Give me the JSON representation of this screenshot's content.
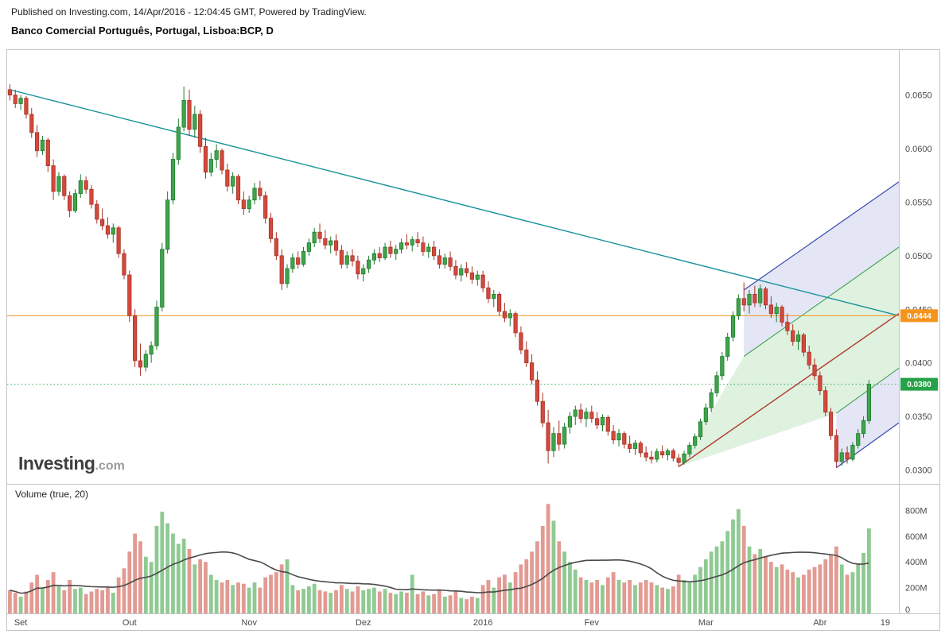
{
  "header": {
    "published": "Published on Investing.com, 14/Apr/2016 - 12:04:45 GMT, Powered by TradingView.",
    "title": "Banco Comercial Português, Portugal, Lisboa:BCP, D"
  },
  "watermark": {
    "brand": "Investing",
    "suffix": ".com"
  },
  "volume_label": "Volume (true, 20)",
  "chart_data": {
    "type": "candlestick",
    "title": "Banco Comercial Português, Portugal, Lisboa:BCP, D",
    "xlabel": "",
    "ylabel": "",
    "candle_format": [
      "open",
      "high",
      "low",
      "close",
      "volume_millions"
    ],
    "colors": {
      "up": "#3fa54a",
      "up_border": "#1e7a2e",
      "down": "#d24a3d",
      "down_border": "#a83226",
      "vol_up": "#8fca93",
      "vol_down": "#e29a92"
    },
    "price_axis": {
      "range": [
        0.0287,
        0.0692
      ],
      "ticks": [
        0.065,
        0.06,
        0.055,
        0.05,
        0.045,
        0.04,
        0.035,
        0.03
      ]
    },
    "volume_axis": {
      "range": [
        0,
        1000
      ],
      "ticks": [
        {
          "v": 800,
          "label": "800M"
        },
        {
          "v": 600,
          "label": "600M"
        },
        {
          "v": 400,
          "label": "400M"
        },
        {
          "v": 200,
          "label": "200M"
        },
        {
          "v": 0,
          "label": "0"
        }
      ]
    },
    "time_axis": {
      "slots": 164,
      "ticks": [
        {
          "label": "Set",
          "i": 2
        },
        {
          "label": "Out",
          "i": 22
        },
        {
          "label": "Nov",
          "i": 44
        },
        {
          "label": "Dez",
          "i": 65
        },
        {
          "label": "2016",
          "i": 87
        },
        {
          "label": "Fev",
          "i": 107
        },
        {
          "label": "Mar",
          "i": 128
        },
        {
          "label": "Abr",
          "i": 149
        },
        {
          "label": "19",
          "i": 161
        }
      ]
    },
    "volume_ma": {
      "period": 20,
      "color": "#4a4a4a"
    },
    "overlays": {
      "trendline": {
        "points": [
          [
            0,
            0.0655
          ],
          [
            164,
            0.0444
          ]
        ],
        "color": "#17919b"
      },
      "hlines": [
        {
          "price": 0.0444,
          "color": "#f5941d",
          "style": "solid",
          "badge": "0.0444",
          "badge_bg": "#f5941d"
        },
        {
          "price": 0.038,
          "color": "#2db153",
          "style": "dotted",
          "badge": "0.0380",
          "badge_bg": "#26a248"
        }
      ],
      "pitchfork": {
        "lines": [
          {
            "name": "median",
            "from": [
              123,
              0.0303
            ],
            "to": [
              164,
              0.0446
            ],
            "color": "#b03a2e",
            "width": 1.4
          },
          {
            "name": "upper-tine",
            "from": [
              135,
              0.0468
            ],
            "to": [
              164,
              0.0569
            ],
            "color": "#3949ab",
            "width": 1.2
          },
          {
            "name": "upper-mid",
            "from": [
              135,
              0.0406
            ],
            "to": [
              164,
              0.0508
            ],
            "color": "#2e9e45",
            "width": 1
          },
          {
            "name": "lower-mid",
            "from": [
              152,
              0.0353
            ],
            "to": [
              164,
              0.0395
            ],
            "color": "#2e9e45",
            "width": 1
          },
          {
            "name": "lower-tine",
            "from": [
              152,
              0.0302
            ],
            "to": [
              164,
              0.0344
            ],
            "color": "#3949ab",
            "width": 1.2
          }
        ],
        "fills": [
          {
            "between": [
              "upper-tine",
              "upper-mid"
            ],
            "color": "rgba(63,81,181,0.14)"
          },
          {
            "between": [
              "upper-mid",
              "median"
            ],
            "color": "rgba(76,175,80,0.18)"
          },
          {
            "between": [
              "median",
              "lower-mid"
            ],
            "color": "rgba(76,175,80,0.18)"
          },
          {
            "between": [
              "lower-mid",
              "lower-tine"
            ],
            "color": "rgba(63,81,181,0.14)"
          }
        ]
      }
    },
    "candles": [
      [
        0.0655,
        0.066,
        0.0645,
        0.065,
        180
      ],
      [
        0.065,
        0.0655,
        0.0638,
        0.0642,
        160
      ],
      [
        0.0642,
        0.065,
        0.0636,
        0.0647,
        130
      ],
      [
        0.0647,
        0.0649,
        0.0628,
        0.0632,
        170
      ],
      [
        0.0632,
        0.0638,
        0.061,
        0.0615,
        240
      ],
      [
        0.0615,
        0.0622,
        0.0592,
        0.0598,
        300
      ],
      [
        0.0598,
        0.0612,
        0.0594,
        0.0608,
        200
      ],
      [
        0.0608,
        0.061,
        0.0578,
        0.0584,
        260
      ],
      [
        0.0584,
        0.059,
        0.0552,
        0.056,
        320
      ],
      [
        0.056,
        0.0578,
        0.0556,
        0.0574,
        210
      ],
      [
        0.0574,
        0.0576,
        0.0552,
        0.0556,
        180
      ],
      [
        0.0556,
        0.056,
        0.0536,
        0.0542,
        260
      ],
      [
        0.0542,
        0.0562,
        0.054,
        0.0558,
        190
      ],
      [
        0.0558,
        0.0576,
        0.0554,
        0.057,
        200
      ],
      [
        0.057,
        0.0574,
        0.0558,
        0.0562,
        150
      ],
      [
        0.0562,
        0.0566,
        0.0544,
        0.0548,
        170
      ],
      [
        0.0548,
        0.0552,
        0.053,
        0.0534,
        190
      ],
      [
        0.0534,
        0.0544,
        0.0524,
        0.0528,
        180
      ],
      [
        0.0528,
        0.0536,
        0.0516,
        0.052,
        200
      ],
      [
        0.052,
        0.053,
        0.0512,
        0.0526,
        160
      ],
      [
        0.0526,
        0.0528,
        0.0498,
        0.0502,
        280
      ],
      [
        0.0502,
        0.0506,
        0.0478,
        0.0482,
        350
      ],
      [
        0.0482,
        0.0486,
        0.0438,
        0.0444,
        480
      ],
      [
        0.0444,
        0.045,
        0.0396,
        0.0402,
        620
      ],
      [
        0.0402,
        0.0418,
        0.0388,
        0.0396,
        560
      ],
      [
        0.0396,
        0.0412,
        0.0392,
        0.0408,
        440
      ],
      [
        0.0408,
        0.042,
        0.04,
        0.0416,
        400
      ],
      [
        0.0416,
        0.0458,
        0.0412,
        0.0452,
        680
      ],
      [
        0.0452,
        0.0512,
        0.0448,
        0.0506,
        790
      ],
      [
        0.0506,
        0.056,
        0.0502,
        0.0552,
        700
      ],
      [
        0.0552,
        0.0596,
        0.0548,
        0.059,
        620
      ],
      [
        0.059,
        0.0628,
        0.0585,
        0.062,
        540
      ],
      [
        0.062,
        0.0658,
        0.0616,
        0.0645,
        580
      ],
      [
        0.0645,
        0.0655,
        0.0612,
        0.0618,
        500
      ],
      [
        0.0618,
        0.064,
        0.061,
        0.0632,
        380
      ],
      [
        0.0632,
        0.0636,
        0.0596,
        0.0602,
        420
      ],
      [
        0.0602,
        0.061,
        0.0572,
        0.0578,
        400
      ],
      [
        0.0578,
        0.0596,
        0.0574,
        0.059,
        300
      ],
      [
        0.059,
        0.0604,
        0.0582,
        0.0598,
        260
      ],
      [
        0.0598,
        0.06,
        0.0576,
        0.058,
        240
      ],
      [
        0.058,
        0.0586,
        0.056,
        0.0565,
        260
      ],
      [
        0.0565,
        0.0578,
        0.0558,
        0.0574,
        220
      ],
      [
        0.0574,
        0.0576,
        0.0548,
        0.0552,
        240
      ],
      [
        0.0552,
        0.056,
        0.0538,
        0.0544,
        230
      ],
      [
        0.0544,
        0.0556,
        0.054,
        0.0552,
        200
      ],
      [
        0.0552,
        0.0568,
        0.0548,
        0.0563,
        240
      ],
      [
        0.0563,
        0.057,
        0.0552,
        0.0556,
        200
      ],
      [
        0.0556,
        0.056,
        0.053,
        0.0535,
        280
      ],
      [
        0.0535,
        0.054,
        0.0512,
        0.0516,
        300
      ],
      [
        0.0516,
        0.0522,
        0.0496,
        0.05,
        320
      ],
      [
        0.05,
        0.0506,
        0.0468,
        0.0474,
        380
      ],
      [
        0.0474,
        0.0492,
        0.047,
        0.0488,
        420
      ],
      [
        0.0488,
        0.0502,
        0.0484,
        0.0498,
        220
      ],
      [
        0.0498,
        0.0504,
        0.0488,
        0.0492,
        180
      ],
      [
        0.0492,
        0.0508,
        0.049,
        0.0504,
        190
      ],
      [
        0.0504,
        0.0516,
        0.05,
        0.0512,
        210
      ],
      [
        0.0512,
        0.0526,
        0.0508,
        0.0522,
        230
      ],
      [
        0.0522,
        0.053,
        0.0512,
        0.0516,
        180
      ],
      [
        0.0516,
        0.0524,
        0.0506,
        0.051,
        170
      ],
      [
        0.051,
        0.0518,
        0.0502,
        0.0514,
        160
      ],
      [
        0.0514,
        0.052,
        0.05,
        0.0505,
        180
      ],
      [
        0.0505,
        0.051,
        0.0488,
        0.0492,
        220
      ],
      [
        0.0492,
        0.0504,
        0.0488,
        0.05,
        190
      ],
      [
        0.05,
        0.0506,
        0.049,
        0.0495,
        170
      ],
      [
        0.0495,
        0.05,
        0.0478,
        0.0483,
        210
      ],
      [
        0.0483,
        0.0492,
        0.0476,
        0.0488,
        180
      ],
      [
        0.0488,
        0.05,
        0.0484,
        0.0496,
        190
      ],
      [
        0.0496,
        0.0506,
        0.0492,
        0.0502,
        200
      ],
      [
        0.0502,
        0.0508,
        0.0494,
        0.0498,
        170
      ],
      [
        0.0498,
        0.0512,
        0.0496,
        0.0508,
        190
      ],
      [
        0.0508,
        0.0514,
        0.0498,
        0.0502,
        160
      ],
      [
        0.0502,
        0.051,
        0.0496,
        0.0506,
        150
      ],
      [
        0.0506,
        0.0516,
        0.0502,
        0.0512,
        170
      ],
      [
        0.0512,
        0.052,
        0.0506,
        0.051,
        160
      ],
      [
        0.051,
        0.0518,
        0.0504,
        0.0515,
        300
      ],
      [
        0.0515,
        0.0522,
        0.0508,
        0.0512,
        150
      ],
      [
        0.0512,
        0.0518,
        0.05,
        0.0504,
        170
      ],
      [
        0.0504,
        0.0512,
        0.0498,
        0.0508,
        140
      ],
      [
        0.0508,
        0.0514,
        0.0496,
        0.05,
        150
      ],
      [
        0.05,
        0.0506,
        0.0488,
        0.0492,
        180
      ],
      [
        0.0492,
        0.0502,
        0.0488,
        0.0498,
        130
      ],
      [
        0.0498,
        0.0504,
        0.0486,
        0.049,
        140
      ],
      [
        0.049,
        0.0496,
        0.0478,
        0.0482,
        170
      ],
      [
        0.0482,
        0.0492,
        0.0476,
        0.0488,
        120
      ],
      [
        0.0488,
        0.0494,
        0.048,
        0.0484,
        110
      ],
      [
        0.0484,
        0.049,
        0.0474,
        0.0478,
        130
      ],
      [
        0.0478,
        0.0486,
        0.0472,
        0.0482,
        120
      ],
      [
        0.0482,
        0.0486,
        0.0466,
        0.047,
        220
      ],
      [
        0.047,
        0.0476,
        0.0456,
        0.046,
        260
      ],
      [
        0.046,
        0.0468,
        0.0452,
        0.0464,
        200
      ],
      [
        0.0464,
        0.0466,
        0.0444,
        0.0448,
        280
      ],
      [
        0.0448,
        0.0456,
        0.0438,
        0.0442,
        300
      ],
      [
        0.0442,
        0.045,
        0.0434,
        0.0446,
        240
      ],
      [
        0.0446,
        0.0448,
        0.0424,
        0.0428,
        320
      ],
      [
        0.0428,
        0.0434,
        0.0408,
        0.0412,
        380
      ],
      [
        0.0412,
        0.042,
        0.0396,
        0.04,
        420
      ],
      [
        0.04,
        0.0408,
        0.038,
        0.0384,
        480
      ],
      [
        0.0384,
        0.0392,
        0.036,
        0.0364,
        560
      ],
      [
        0.0364,
        0.0372,
        0.034,
        0.0344,
        680
      ],
      [
        0.0344,
        0.0356,
        0.0306,
        0.0318,
        850
      ],
      [
        0.0318,
        0.034,
        0.0312,
        0.0334,
        720
      ],
      [
        0.0334,
        0.0346,
        0.0318,
        0.0324,
        560
      ],
      [
        0.0324,
        0.0344,
        0.032,
        0.034,
        480
      ],
      [
        0.034,
        0.0354,
        0.0334,
        0.035,
        400
      ],
      [
        0.035,
        0.036,
        0.0342,
        0.0356,
        340
      ],
      [
        0.0356,
        0.0362,
        0.0344,
        0.0348,
        280
      ],
      [
        0.0348,
        0.0358,
        0.034,
        0.0354,
        260
      ],
      [
        0.0354,
        0.036,
        0.0344,
        0.0348,
        240
      ],
      [
        0.0348,
        0.0354,
        0.0338,
        0.0342,
        260
      ],
      [
        0.0342,
        0.0352,
        0.0336,
        0.0349,
        220
      ],
      [
        0.0349,
        0.0351,
        0.0332,
        0.0336,
        280
      ],
      [
        0.0336,
        0.0342,
        0.0324,
        0.0328,
        320
      ],
      [
        0.0328,
        0.0338,
        0.0322,
        0.0334,
        260
      ],
      [
        0.0334,
        0.0336,
        0.032,
        0.0324,
        240
      ],
      [
        0.0324,
        0.0332,
        0.0316,
        0.032,
        260
      ],
      [
        0.032,
        0.0328,
        0.0314,
        0.0325,
        220
      ],
      [
        0.0325,
        0.0327,
        0.0312,
        0.0316,
        240
      ],
      [
        0.0316,
        0.0322,
        0.0308,
        0.0312,
        260
      ],
      [
        0.0312,
        0.0318,
        0.0306,
        0.031,
        240
      ],
      [
        0.031,
        0.032,
        0.0307,
        0.0317,
        220
      ],
      [
        0.0317,
        0.0323,
        0.0311,
        0.0314,
        200
      ],
      [
        0.0314,
        0.032,
        0.0309,
        0.0318,
        190
      ],
      [
        0.0318,
        0.032,
        0.0308,
        0.0311,
        210
      ],
      [
        0.0311,
        0.0315,
        0.0303,
        0.0307,
        300
      ],
      [
        0.0307,
        0.0318,
        0.0305,
        0.0315,
        260
      ],
      [
        0.0315,
        0.0326,
        0.0312,
        0.0323,
        240
      ],
      [
        0.0323,
        0.0334,
        0.032,
        0.0331,
        300
      ],
      [
        0.0331,
        0.0348,
        0.0328,
        0.0345,
        360
      ],
      [
        0.0345,
        0.0362,
        0.0342,
        0.0358,
        420
      ],
      [
        0.0358,
        0.0376,
        0.0354,
        0.0372,
        480
      ],
      [
        0.0372,
        0.0392,
        0.0368,
        0.0388,
        520
      ],
      [
        0.0388,
        0.041,
        0.0384,
        0.0406,
        560
      ],
      [
        0.0406,
        0.0428,
        0.0402,
        0.0424,
        640
      ],
      [
        0.0424,
        0.0448,
        0.042,
        0.0444,
        730
      ],
      [
        0.0444,
        0.0464,
        0.044,
        0.046,
        810
      ],
      [
        0.046,
        0.0475,
        0.0448,
        0.0454,
        680
      ],
      [
        0.0454,
        0.0468,
        0.0446,
        0.0464,
        520
      ],
      [
        0.0464,
        0.0472,
        0.0452,
        0.0456,
        460
      ],
      [
        0.0456,
        0.0473,
        0.0452,
        0.0469,
        500
      ],
      [
        0.0469,
        0.0471,
        0.045,
        0.0454,
        440
      ],
      [
        0.0454,
        0.0462,
        0.0442,
        0.0446,
        400
      ],
      [
        0.0446,
        0.0456,
        0.0438,
        0.0452,
        360
      ],
      [
        0.0452,
        0.0454,
        0.0434,
        0.0438,
        380
      ],
      [
        0.0438,
        0.0446,
        0.0426,
        0.043,
        340
      ],
      [
        0.043,
        0.0436,
        0.0416,
        0.042,
        320
      ],
      [
        0.042,
        0.043,
        0.0412,
        0.0426,
        280
      ],
      [
        0.0426,
        0.0428,
        0.0406,
        0.041,
        300
      ],
      [
        0.041,
        0.0416,
        0.0394,
        0.0398,
        340
      ],
      [
        0.0398,
        0.0404,
        0.0384,
        0.0388,
        360
      ],
      [
        0.0388,
        0.0392,
        0.037,
        0.0374,
        380
      ],
      [
        0.0374,
        0.0378,
        0.035,
        0.0354,
        420
      ],
      [
        0.0354,
        0.0358,
        0.0328,
        0.0332,
        460
      ],
      [
        0.0332,
        0.0338,
        0.0302,
        0.0308,
        520
      ],
      [
        0.0308,
        0.032,
        0.0304,
        0.0316,
        380
      ],
      [
        0.0316,
        0.0322,
        0.0306,
        0.031,
        300
      ],
      [
        0.031,
        0.0326,
        0.0308,
        0.0323,
        320
      ],
      [
        0.0323,
        0.0338,
        0.032,
        0.0334,
        390
      ],
      [
        0.0334,
        0.035,
        0.033,
        0.0346,
        470
      ],
      [
        0.0346,
        0.0384,
        0.0343,
        0.038,
        660
      ]
    ]
  }
}
